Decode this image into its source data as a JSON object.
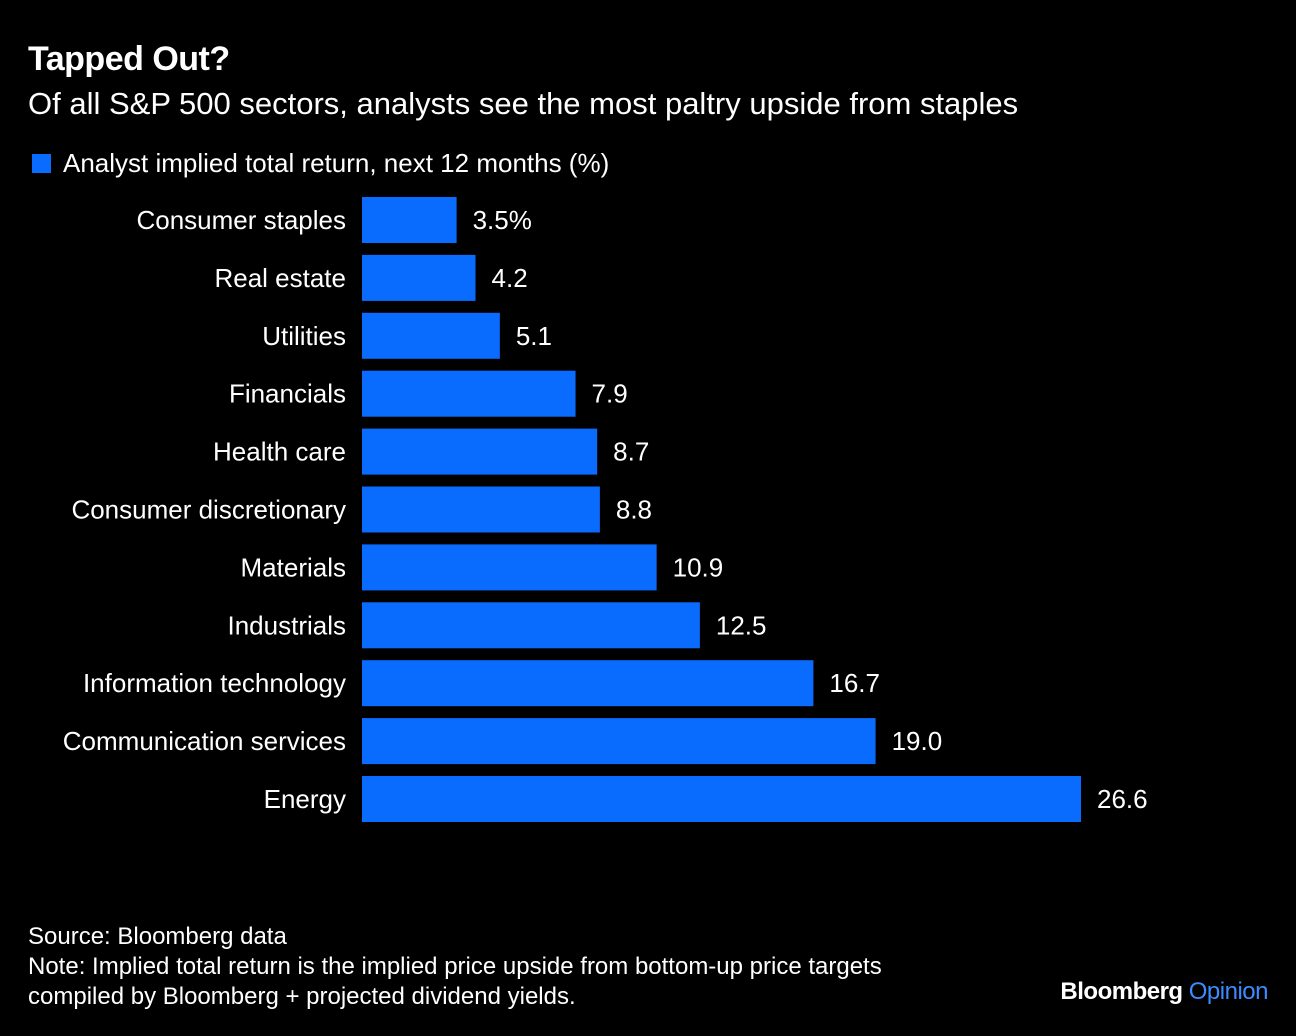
{
  "header": {
    "title": "Tapped Out?",
    "subtitle": "Of all S&P 500 sectors, analysts see the most paltry upside from staples"
  },
  "legend": {
    "label": "Analyst implied total return, next 12 months (%)"
  },
  "colors": {
    "background": "#000000",
    "bar": "#0a6cff",
    "text": "#ffffff",
    "brand_accent": "#3d8bff"
  },
  "chart_data": {
    "type": "bar",
    "orientation": "horizontal",
    "categories": [
      "Consumer staples",
      "Real estate",
      "Utilities",
      "Financials",
      "Health care",
      "Consumer discretionary",
      "Materials",
      "Industrials",
      "Information technology",
      "Communication services",
      "Energy"
    ],
    "values": [
      3.5,
      4.2,
      5.1,
      7.9,
      8.7,
      8.8,
      10.9,
      12.5,
      16.7,
      19.0,
      26.6
    ],
    "value_labels": [
      "3.5%",
      "4.2",
      "5.1",
      "7.9",
      "8.7",
      "8.8",
      "10.9",
      "12.5",
      "16.7",
      "19.0",
      "26.6"
    ],
    "series": [
      {
        "name": "Analyst implied total return, next 12 months (%)",
        "values": [
          3.5,
          4.2,
          5.1,
          7.9,
          8.7,
          8.8,
          10.9,
          12.5,
          16.7,
          19.0,
          26.6
        ]
      }
    ],
    "title": "Tapped Out?",
    "subtitle": "Of all S&P 500 sectors, analysts see the most paltry upside from staples",
    "xlim": [
      0,
      26.6
    ],
    "grid": false,
    "legend_position": "top-left"
  },
  "footer": {
    "source": "Source: Bloomberg data",
    "note_line1": "Note: Implied total return is the implied price upside from bottom-up price targets",
    "note_line2": "compiled by Bloomberg + projected dividend yields."
  },
  "brand": {
    "name": "Bloomberg",
    "product": "Opinion"
  }
}
